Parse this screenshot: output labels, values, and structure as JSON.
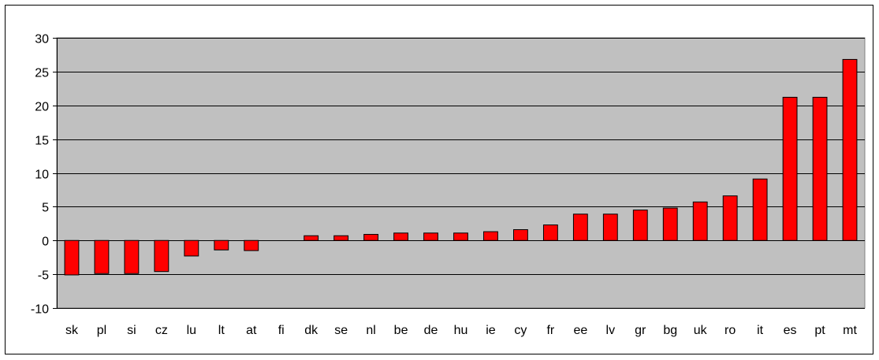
{
  "chart_data": {
    "type": "bar",
    "title": "",
    "xlabel": "",
    "ylabel": "",
    "categories": [
      "sk",
      "pl",
      "si",
      "cz",
      "lu",
      "lt",
      "at",
      "fi",
      "dk",
      "se",
      "nl",
      "be",
      "de",
      "hu",
      "ie",
      "cy",
      "fr",
      "ee",
      "lv",
      "gr",
      "bg",
      "uk",
      "ro",
      "it",
      "es",
      "pt",
      "mt"
    ],
    "values": [
      -5.1,
      -4.9,
      -4.9,
      -4.6,
      -2.3,
      -1.4,
      -1.5,
      0,
      0.7,
      0.7,
      0.9,
      1.1,
      1.1,
      1.1,
      1.3,
      1.6,
      2.3,
      3.9,
      3.9,
      4.5,
      4.8,
      5.7,
      6.6,
      9.1,
      21.2,
      21.2,
      26.8
    ],
    "ylim": [
      -10,
      30
    ],
    "yticks": [
      -10,
      -5,
      0,
      5,
      10,
      15,
      20,
      25,
      30
    ],
    "grid": true,
    "legend": "none",
    "colors": {
      "bar_fill": "#ff0000",
      "bar_stroke": "#000000",
      "plot_background": "#c0c0c0",
      "gridline": "#000000"
    }
  }
}
